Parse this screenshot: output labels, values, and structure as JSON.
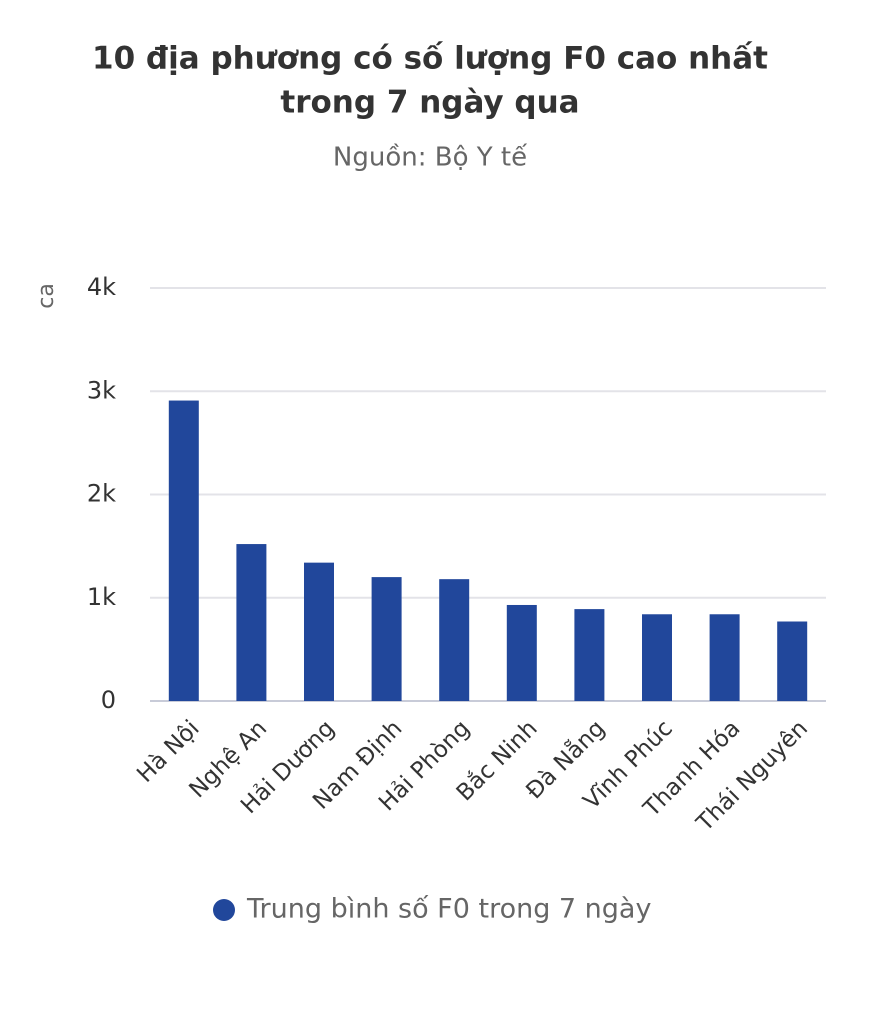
{
  "chart_data": {
    "type": "bar",
    "title": [
      "10 địa phương có số lượng F0 cao nhất",
      "trong 7 ngày qua"
    ],
    "subtitle": "Nguồn: Bộ Y tế",
    "y_label": "ca",
    "categories": [
      "Hà Nội",
      "Nghệ An",
      "Hải Dương",
      "Nam Định",
      "Hải Phòng",
      "Bắc Ninh",
      "Đà Nẵng",
      "Vĩnh Phúc",
      "Thanh Hóa",
      "Thái Nguyên"
    ],
    "series": [
      {
        "name": "Trung bình số F0 trong 7 ngày",
        "color": "#21479b",
        "values": [
          2910,
          1520,
          1340,
          1200,
          1180,
          930,
          890,
          840,
          840,
          770
        ]
      }
    ],
    "ylim": [
      0,
      4000
    ],
    "yticks": [
      0,
      {
        "value": 1000,
        "label": "1k"
      },
      {
        "value": 2000,
        "label": "2k"
      },
      {
        "value": 3000,
        "label": "3k"
      },
      {
        "value": 4000,
        "label": "4k"
      }
    ],
    "grid": true
  }
}
